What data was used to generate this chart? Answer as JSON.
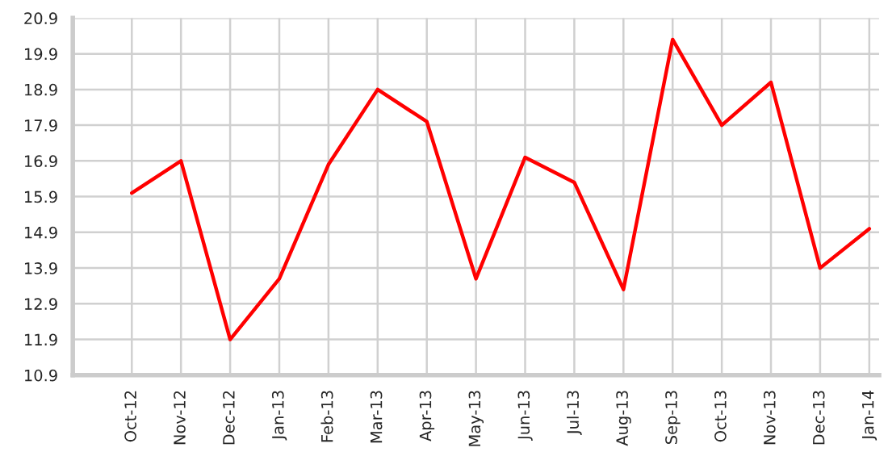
{
  "chart_data": {
    "type": "line",
    "categories": [
      "Oct-12",
      "Nov-12",
      "Dec-12",
      "Jan-13",
      "Feb-13",
      "Mar-13",
      "Apr-13",
      "May-13",
      "Jun-13",
      "Jul-13",
      "Aug-13",
      "Sep-13",
      "Oct-13",
      "Nov-13",
      "Dec-13",
      "Jan-14"
    ],
    "series": [
      {
        "color": "#ff0000",
        "values": [
          16.0,
          16.9,
          11.9,
          13.6,
          16.8,
          18.9,
          18.0,
          13.6,
          17.0,
          16.3,
          13.3,
          20.3,
          17.9,
          19.1,
          13.9,
          15.0
        ]
      }
    ],
    "ylim": [
      10.9,
      20.9
    ],
    "yticks": [
      {
        "value": 10.9,
        "label": "10.9"
      },
      {
        "value": 11.9,
        "label": "11.9"
      },
      {
        "value": 12.9,
        "label": "12.9"
      },
      {
        "value": 13.9,
        "label": "13.9"
      },
      {
        "value": 14.9,
        "label": "14.9"
      },
      {
        "value": 15.9,
        "label": "15.9"
      },
      {
        "value": 16.9,
        "label": "16.9"
      },
      {
        "value": 17.9,
        "label": "17.9"
      },
      {
        "value": 18.9,
        "label": "18.9"
      },
      {
        "value": 19.9,
        "label": "19.9"
      },
      {
        "value": 20.9,
        "label": "20.9"
      }
    ],
    "grid": true,
    "marker": "none",
    "line_style": "solid"
  }
}
